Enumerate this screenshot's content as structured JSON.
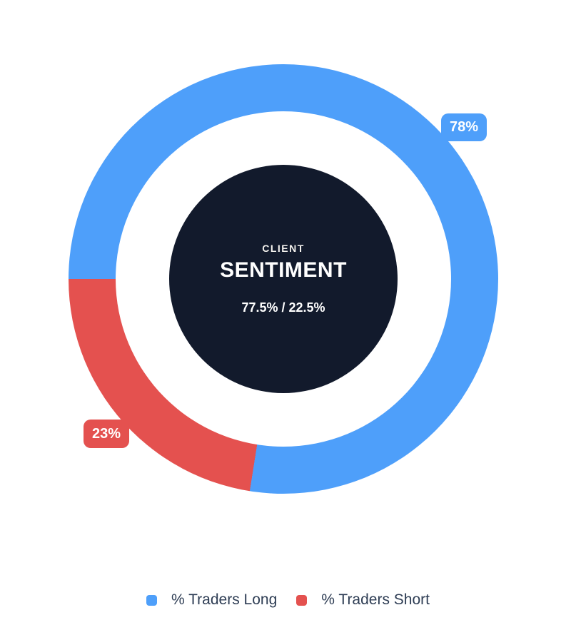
{
  "chart_data": {
    "type": "pie",
    "variant": "donut",
    "title": "CLIENT SENTIMENT",
    "labels": [
      "% Traders Long",
      "% Traders Short"
    ],
    "values": [
      77.5,
      22.5
    ],
    "display_labels": [
      "78%",
      "23%"
    ],
    "colors": [
      "#4E9FFA",
      "#E4514F"
    ],
    "start_angle_deg": 270,
    "direction": "clockwise",
    "legend_position": "bottom",
    "center_text": {
      "kicker": "CLIENT",
      "title": "SENTIMENT",
      "ratio": "77.5% / 22.5%"
    }
  },
  "ui": {
    "background": "#FFFFFF",
    "center_disc_bg": "#121A2C",
    "legend_text_color": "#2E3D54",
    "badge_text_color": "#FFFFFF"
  }
}
